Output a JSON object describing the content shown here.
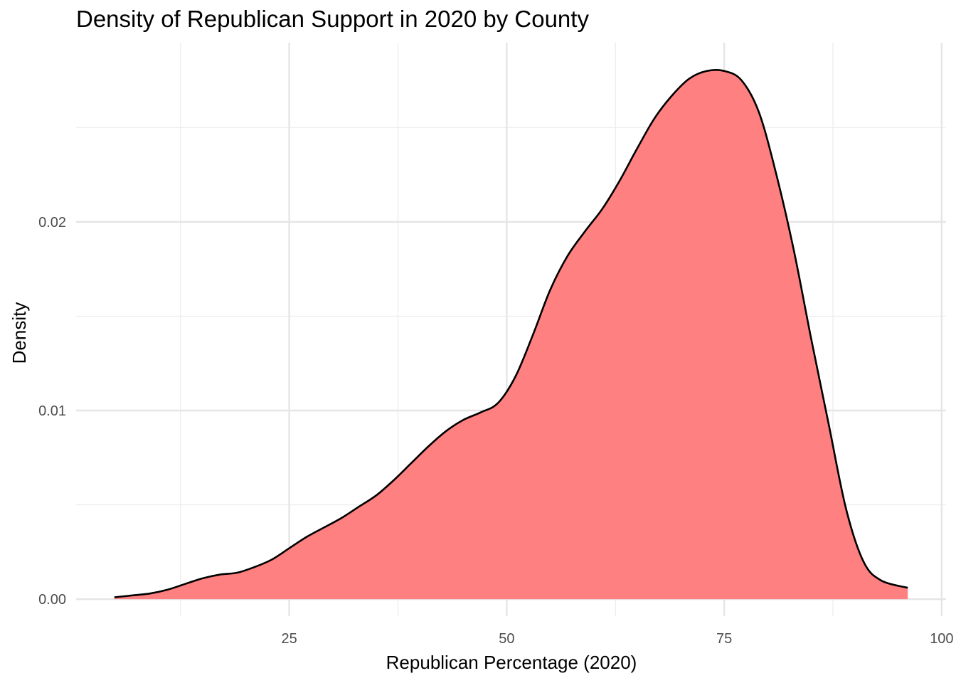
{
  "chart_data": {
    "type": "area",
    "title": "Density of Republican Support in 2020 by County",
    "xlabel": "Republican Percentage (2020)",
    "ylabel": "Density",
    "xlim": [
      0.5,
      100.5
    ],
    "ylim": [
      -0.0009,
      0.0295
    ],
    "x_ticks": [
      25,
      50,
      75,
      100
    ],
    "x_tick_labels": [
      "25",
      "50",
      "75",
      "100"
    ],
    "x_minor_ticks": [
      12.5,
      37.5,
      62.5,
      87.5
    ],
    "y_ticks": [
      0.0,
      0.01,
      0.02
    ],
    "y_tick_labels": [
      "0.00",
      "0.01",
      "0.02"
    ],
    "y_minor_ticks": [
      0.005,
      0.015,
      0.025
    ],
    "grid": true,
    "legend": "none",
    "fill_color": "#ff8080",
    "line_color": "#000000",
    "series": [
      {
        "x": [
          4.9,
          7,
          9,
          11,
          13,
          15,
          17,
          19,
          21,
          23,
          25,
          27,
          29,
          31,
          33,
          35,
          37,
          39,
          41,
          43,
          45,
          47,
          49,
          51,
          53,
          55,
          57,
          59,
          61,
          63,
          65,
          67,
          69,
          71,
          73,
          75,
          77,
          79,
          81,
          83,
          85,
          87,
          89,
          91,
          93,
          96.1
        ],
        "y": [
          0.0001,
          0.0002,
          0.0003,
          0.0005,
          0.0008,
          0.0011,
          0.0013,
          0.0014,
          0.0017,
          0.0021,
          0.0027,
          0.0033,
          0.0038,
          0.0043,
          0.0049,
          0.0055,
          0.0063,
          0.0072,
          0.0081,
          0.0089,
          0.0095,
          0.0099,
          0.0104,
          0.0118,
          0.014,
          0.0164,
          0.0182,
          0.0195,
          0.0207,
          0.0222,
          0.0239,
          0.0255,
          0.0267,
          0.0276,
          0.028,
          0.028,
          0.0275,
          0.0258,
          0.0225,
          0.0185,
          0.0138,
          0.0093,
          0.0048,
          0.002,
          0.001,
          0.0006
        ]
      }
    ]
  }
}
